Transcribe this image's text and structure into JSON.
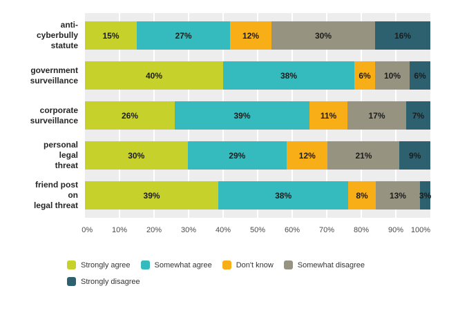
{
  "figure": {
    "background": "#ffffff",
    "plot_background": "#ededed",
    "gridline_color": "#ffffff"
  },
  "chart_data": {
    "type": "bar",
    "stacked": true,
    "orientation": "horizontal",
    "grid": true,
    "value_suffix": "%",
    "categories": [
      "anti-\ncyberbully\nstatute",
      "government\nsurveillance",
      "corporate\nsurveillance",
      "personal\nlegal\nthreat",
      "friend post\non\nlegal threat"
    ],
    "series": [
      {
        "name": "Strongly agree",
        "color": "#c6d22b",
        "values": [
          15,
          40,
          26,
          30,
          39
        ]
      },
      {
        "name": "Somewhat agree",
        "color": "#35babd",
        "values": [
          27,
          38,
          39,
          29,
          38
        ]
      },
      {
        "name": "Don't know",
        "color": "#f8ae17",
        "values": [
          12,
          6,
          11,
          12,
          8
        ]
      },
      {
        "name": "Somewhat disagree",
        "color": "#969380",
        "values": [
          30,
          10,
          17,
          21,
          13
        ]
      },
      {
        "name": "Strongly disagree",
        "color": "#2d6170",
        "values": [
          16,
          6,
          7,
          9,
          3
        ]
      }
    ],
    "x_axis": {
      "min": 0,
      "max": 100,
      "ticks": [
        "0%",
        "10%",
        "20%",
        "30%",
        "40%",
        "50%",
        "60%",
        "70%",
        "80%",
        "90%",
        "100%"
      ]
    },
    "legend_position": "bottom"
  }
}
